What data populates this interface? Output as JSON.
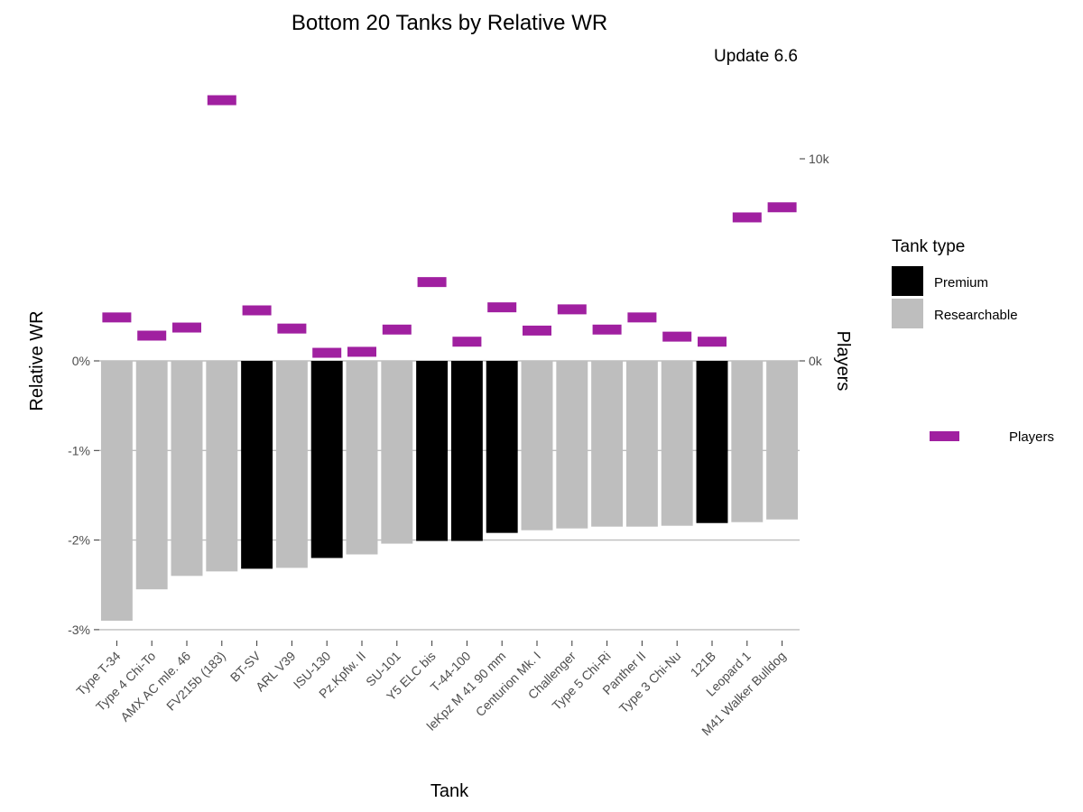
{
  "chart_data": {
    "type": "bar",
    "title": "Bottom 20 Tanks by Relative WR",
    "subtitle": "Update 6.6",
    "xlabel": "Tank",
    "ylabel": "Relative WR",
    "y2label": "Players",
    "ylim": [
      -3,
      0
    ],
    "y_ticks": [
      "0%",
      "-1%",
      "-2%",
      "-3%"
    ],
    "y2_ticks": [
      "10k",
      "0k"
    ],
    "grid": "horizontal",
    "legend_placement": "right",
    "legend_title": "Tank type",
    "legend_items": [
      {
        "label": "Premium",
        "color": "#000000"
      },
      {
        "label": "Researchable",
        "color": "#bebebe"
      }
    ],
    "legend2_label": "Players",
    "players_color": "#a020a0",
    "categories": [
      "Type T-34",
      "Type 4 Chi-To",
      "AMX AC mle. 46",
      "FV215b (183)",
      "BT-SV",
      "ARL V39",
      "ISU-130",
      "Pz.Kpfw. II",
      "SU-101",
      "Y5 ELC bis",
      "T-44-100",
      "leKpz M 41 90 mm",
      "Centurion Mk. I",
      "Challenger",
      "Type 5 Chi-Ri",
      "Panther II",
      "Type 3 Chi-Nu",
      "121B",
      "Leopard 1",
      "M41 Walker Bulldog"
    ],
    "types": [
      "Researchable",
      "Researchable",
      "Researchable",
      "Researchable",
      "Premium",
      "Researchable",
      "Premium",
      "Researchable",
      "Researchable",
      "Premium",
      "Premium",
      "Premium",
      "Researchable",
      "Researchable",
      "Researchable",
      "Researchable",
      "Researchable",
      "Premium",
      "Researchable",
      "Researchable"
    ],
    "series": [
      {
        "name": "Relative WR",
        "values": [
          -2.9,
          -2.55,
          -2.4,
          -2.35,
          -2.32,
          -2.31,
          -2.2,
          -2.16,
          -2.04,
          -2.01,
          -2.01,
          -1.92,
          -1.89,
          -1.87,
          -1.85,
          -1.85,
          -1.84,
          -1.81,
          -1.8,
          -1.77
        ]
      },
      {
        "name": "Players",
        "values": [
          2150,
          1250,
          1650,
          12900,
          2500,
          1600,
          400,
          450,
          1550,
          3900,
          950,
          2650,
          1500,
          2550,
          1550,
          2150,
          1200,
          950,
          7100,
          7600
        ]
      }
    ]
  }
}
